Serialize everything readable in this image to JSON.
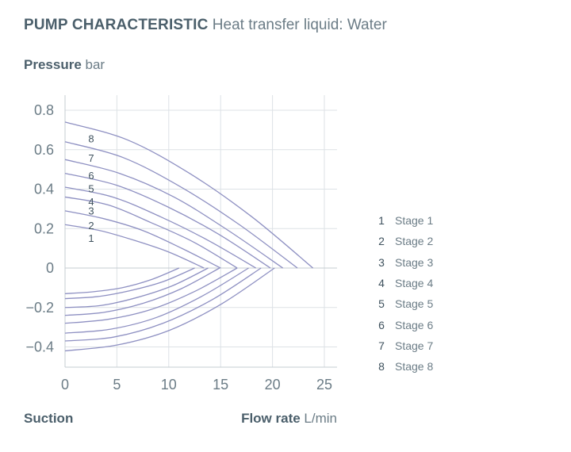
{
  "header": {
    "title": "PUMP CHARACTERISTIC",
    "subtitle": "Heat transfer liquid: Water"
  },
  "colors": {
    "line": "#8e90c2",
    "grid": "#dde2e6",
    "axis": "#c5ccd2",
    "text": "#4b5f6b"
  },
  "chart_data": {
    "type": "line",
    "title": "PUMP CHARACTERISTIC",
    "subtitle": "Heat transfer liquid: Water",
    "ylabel": {
      "name": "Pressure",
      "unit": "bar"
    },
    "xlabel": {
      "name": "Flow rate",
      "unit": "L/min"
    },
    "negative_region_label": "Suction",
    "xlim": [
      0,
      26.2
    ],
    "ylim": [
      -0.5,
      0.88
    ],
    "xticks": [
      0,
      5,
      10,
      15,
      20,
      25
    ],
    "xtick_labels": [
      "0",
      "5",
      "10",
      "15",
      "20",
      "25"
    ],
    "yticks": [
      0.8,
      0.6,
      0.4,
      0.2,
      0,
      -0.2,
      -0.4
    ],
    "ytick_labels": [
      "0.8",
      "0.6",
      "0.4",
      "0.2",
      "0",
      "−0.2",
      "−0.4"
    ],
    "grid": true,
    "legend_position": "right",
    "series": [
      {
        "label": "1",
        "name": "Stage 1",
        "pressure": [
          [
            0,
            0.22
          ],
          [
            3.35,
            0.19
          ],
          [
            6.7,
            0.14
          ],
          [
            10.05,
            0.08
          ],
          [
            13.4,
            0
          ]
        ],
        "suction": [
          [
            0,
            -0.13
          ],
          [
            2.75,
            -0.12
          ],
          [
            5.5,
            -0.1
          ],
          [
            8.25,
            -0.06
          ],
          [
            11,
            0
          ]
        ]
      },
      {
        "label": "2",
        "name": "Stage 2",
        "pressure": [
          [
            0,
            0.29
          ],
          [
            3.75,
            0.25
          ],
          [
            7.5,
            0.19
          ],
          [
            11.25,
            0.1
          ],
          [
            15,
            0
          ]
        ],
        "suction": [
          [
            0,
            -0.155
          ],
          [
            3.1,
            -0.145
          ],
          [
            6.25,
            -0.115
          ],
          [
            9.4,
            -0.07
          ],
          [
            12.5,
            0
          ]
        ]
      },
      {
        "label": "3",
        "name": "Stage 3",
        "pressure": [
          [
            0,
            0.36
          ],
          [
            4.15,
            0.32
          ],
          [
            8.3,
            0.23
          ],
          [
            12.45,
            0.13
          ],
          [
            16.6,
            0
          ]
        ],
        "suction": [
          [
            0,
            -0.2
          ],
          [
            3.45,
            -0.19
          ],
          [
            6.9,
            -0.15
          ],
          [
            10.35,
            -0.09
          ],
          [
            13.8,
            0
          ]
        ]
      },
      {
        "label": "4",
        "name": "Stage 4",
        "pressure": [
          [
            0,
            0.41
          ],
          [
            4.6,
            0.36
          ],
          [
            9.2,
            0.26
          ],
          [
            13.8,
            0.14
          ],
          [
            18.4,
            0
          ]
        ],
        "suction": [
          [
            0,
            -0.24
          ],
          [
            3.7,
            -0.225
          ],
          [
            7.45,
            -0.18
          ],
          [
            11.2,
            -0.105
          ],
          [
            14.9,
            0
          ]
        ]
      },
      {
        "label": "5",
        "name": "Stage 5",
        "pressure": [
          [
            0,
            0.48
          ],
          [
            4.95,
            0.42
          ],
          [
            9.9,
            0.31
          ],
          [
            14.85,
            0.17
          ],
          [
            19.8,
            0
          ]
        ],
        "suction": [
          [
            0,
            -0.28
          ],
          [
            4.15,
            -0.26
          ],
          [
            8.3,
            -0.21
          ],
          [
            12.45,
            -0.12
          ],
          [
            16.6,
            0
          ]
        ]
      },
      {
        "label": "6",
        "name": "Stage 6",
        "pressure": [
          [
            0,
            0.55
          ],
          [
            5.25,
            0.48
          ],
          [
            10.5,
            0.36
          ],
          [
            15.75,
            0.19
          ],
          [
            21,
            0
          ]
        ],
        "suction": [
          [
            0,
            -0.33
          ],
          [
            4.4,
            -0.31
          ],
          [
            8.85,
            -0.25
          ],
          [
            13.3,
            -0.14
          ],
          [
            17.7,
            0
          ]
        ]
      },
      {
        "label": "7",
        "name": "Stage 7",
        "pressure": [
          [
            0,
            0.64
          ],
          [
            5.6,
            0.56
          ],
          [
            11.2,
            0.41
          ],
          [
            16.8,
            0.22
          ],
          [
            22.4,
            0
          ]
        ],
        "suction": [
          [
            0,
            -0.37
          ],
          [
            4.7,
            -0.35
          ],
          [
            9.45,
            -0.28
          ],
          [
            14.2,
            -0.16
          ],
          [
            18.9,
            0
          ]
        ]
      },
      {
        "label": "8",
        "name": "Stage 8",
        "pressure": [
          [
            0,
            0.74
          ],
          [
            6,
            0.65
          ],
          [
            12,
            0.48
          ],
          [
            18,
            0.26
          ],
          [
            23.9,
            0
          ]
        ],
        "suction": [
          [
            0,
            -0.42
          ],
          [
            5.05,
            -0.39
          ],
          [
            10.1,
            -0.315
          ],
          [
            15.15,
            -0.18
          ],
          [
            20.2,
            0
          ]
        ]
      }
    ]
  }
}
